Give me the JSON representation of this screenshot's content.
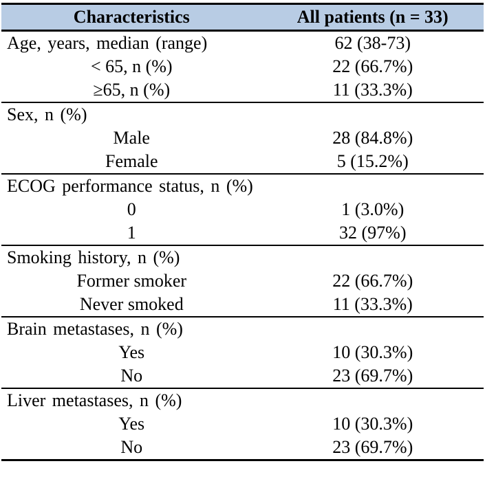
{
  "table": {
    "colors": {
      "header_bg": "#b8cce4",
      "border": "#000000",
      "text": "#000000"
    },
    "header": {
      "characteristics_label": "Characteristics",
      "patients_label": "All patients (n = 33)"
    },
    "sections": [
      {
        "rows": [
          {
            "label": "Age, years, median (range)",
            "value": "62 (38-73)",
            "indent": false
          },
          {
            "label": "< 65, n (%)",
            "value": "22 (66.7%)",
            "indent": true
          },
          {
            "label": "≥65, n (%)",
            "value": "11 (33.3%)",
            "indent": true
          }
        ]
      },
      {
        "rows": [
          {
            "label": "Sex, n (%)",
            "value": "",
            "indent": false
          },
          {
            "label": "Male",
            "value": "28 (84.8%)",
            "indent": true
          },
          {
            "label": "Female",
            "value": "5 (15.2%)",
            "indent": true
          }
        ]
      },
      {
        "rows": [
          {
            "label": "ECOG performance status, n (%)",
            "value": "",
            "indent": false
          },
          {
            "label": "0",
            "value": "1 (3.0%)",
            "indent": true
          },
          {
            "label": "1",
            "value": "32 (97%)",
            "indent": true
          }
        ]
      },
      {
        "rows": [
          {
            "label": "Smoking history, n (%)",
            "value": "",
            "indent": false
          },
          {
            "label": "Former smoker",
            "value": "22 (66.7%)",
            "indent": true
          },
          {
            "label": "Never smoked",
            "value": "11 (33.3%)",
            "indent": true
          }
        ]
      },
      {
        "rows": [
          {
            "label": "Brain metastases, n (%)",
            "value": "",
            "indent": false
          },
          {
            "label": "Yes",
            "value": "10 (30.3%)",
            "indent": true
          },
          {
            "label": "No",
            "value": "23 (69.7%)",
            "indent": true
          }
        ]
      },
      {
        "rows": [
          {
            "label": "Liver metastases, n (%)",
            "value": "",
            "indent": false
          },
          {
            "label": "Yes",
            "value": "10 (30.3%)",
            "indent": true
          },
          {
            "label": "No",
            "value": "23 (69.7%)",
            "indent": true
          }
        ]
      }
    ]
  }
}
